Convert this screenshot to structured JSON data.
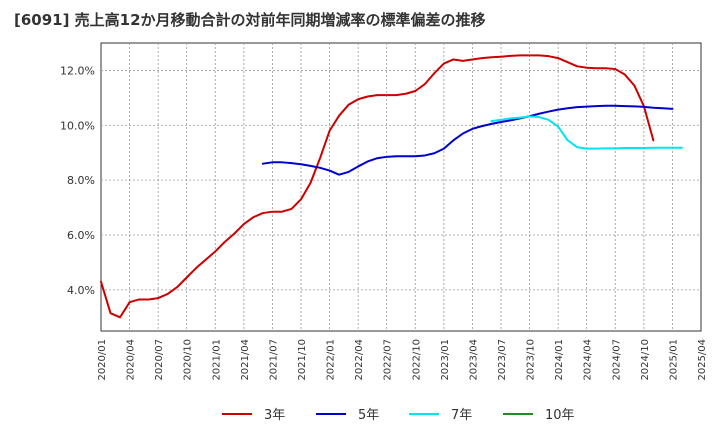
{
  "chart_data": {
    "type": "line",
    "title": "[6091]  売上高12か月移動合計の対前年同期増減率の標準偏差の推移",
    "xlabel": "",
    "ylabel": "",
    "ylim": [
      2.5,
      13.0
    ],
    "y_ticks": [
      4.0,
      6.0,
      8.0,
      10.0,
      12.0
    ],
    "y_tick_labels": [
      "4.0%",
      "6.0%",
      "8.0%",
      "10.0%",
      "12.0%"
    ],
    "x_range": [
      "2020/01",
      "2025/04"
    ],
    "x_tick_labels": [
      "2020/01",
      "2020/04",
      "2020/07",
      "2020/10",
      "2021/01",
      "2021/04",
      "2021/07",
      "2021/10",
      "2022/01",
      "2022/04",
      "2022/07",
      "2022/10",
      "2023/01",
      "2023/04",
      "2023/07",
      "2023/10",
      "2024/01",
      "2024/04",
      "2024/07",
      "2024/10",
      "2025/01",
      "2025/04"
    ],
    "grid": true,
    "legend_position": "bottom",
    "series": [
      {
        "name": "3年",
        "color": "#cc0000",
        "start": "2020/01",
        "values": [
          4.3,
          3.15,
          3.0,
          3.55,
          3.65,
          3.65,
          3.7,
          3.85,
          4.1,
          4.45,
          4.8,
          5.1,
          5.4,
          5.75,
          6.05,
          6.4,
          6.65,
          6.8,
          6.85,
          6.85,
          6.95,
          7.3,
          7.9,
          8.8,
          9.8,
          10.35,
          10.75,
          10.95,
          11.05,
          11.1,
          11.1,
          11.1,
          11.15,
          11.25,
          11.5,
          11.9,
          12.25,
          12.4,
          12.35,
          12.4,
          12.45,
          12.48,
          12.5,
          12.53,
          12.55,
          12.55,
          12.55,
          12.52,
          12.45,
          12.3,
          12.15,
          12.1,
          12.08,
          12.08,
          12.05,
          11.85,
          11.45,
          10.7,
          9.45
        ]
      },
      {
        "name": "5年",
        "color": "#0000cc",
        "start": "2021/06",
        "values": [
          8.6,
          8.65,
          8.65,
          8.62,
          8.58,
          8.52,
          8.45,
          8.35,
          8.2,
          8.3,
          8.5,
          8.68,
          8.8,
          8.85,
          8.87,
          8.87,
          8.87,
          8.9,
          8.98,
          9.15,
          9.45,
          9.7,
          9.87,
          9.97,
          10.05,
          10.12,
          10.18,
          10.25,
          10.33,
          10.42,
          10.5,
          10.57,
          10.62,
          10.66,
          10.68,
          10.7,
          10.71,
          10.71,
          10.7,
          10.69,
          10.67,
          10.64,
          10.62,
          10.6
        ]
      },
      {
        "name": "7年",
        "color": "#00e5ee",
        "start": "2023/06",
        "values": [
          10.15,
          10.2,
          10.25,
          10.28,
          10.32,
          10.3,
          10.2,
          9.95,
          9.45,
          9.2,
          9.15,
          9.15,
          9.16,
          9.16,
          9.17,
          9.17,
          9.17,
          9.18,
          9.18,
          9.18,
          9.18
        ]
      },
      {
        "name": "10年",
        "color": "#228b22",
        "start": "2025/01",
        "values": []
      }
    ]
  }
}
